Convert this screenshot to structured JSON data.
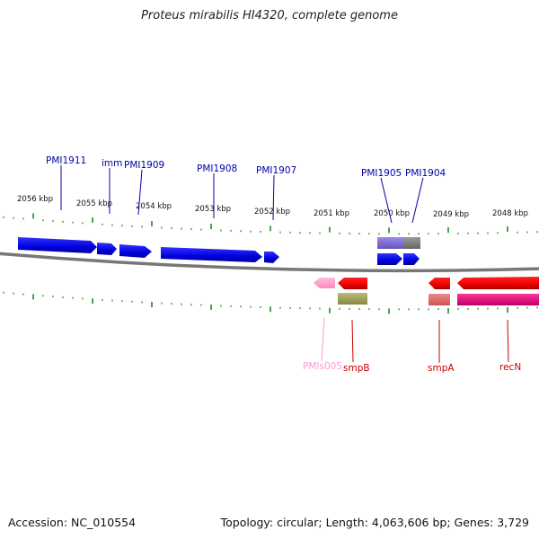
{
  "title": "Proteus mirabilis HI4320, complete genome",
  "footer": {
    "accession": "Accession: NC_010554",
    "topology": "Topology: circular; Length: 4,063,606 bp; Genes: 3,729"
  },
  "kbp_labels": [
    "2056 kbp",
    "2055 kbp",
    "2054 kbp",
    "2053 kbp",
    "2052 kbp",
    "2051 kbp",
    "2050 kbp",
    "2049 kbp",
    "2048 kbp"
  ],
  "genes": {
    "pmi1911": "PMI1911",
    "imm": "imm",
    "pmi1909": "PMI1909",
    "pmi1908": "PMI1908",
    "pmi1907": "PMI1907",
    "pmi1905": "PMI1905",
    "pmi1904": "PMI1904",
    "pmis005": "PMIs005",
    "smpb": "smpB",
    "smpa": "smpA",
    "recn": "recN"
  },
  "colors": {
    "forward": "#0000ee",
    "reverse": "#ee0000",
    "trna": "#ff99cc",
    "misc": "#999966",
    "purple": "#7766cc",
    "magenta": "#dd1177",
    "backbone": "#777777",
    "ticks": "#228822",
    "text": "#0000aa",
    "reverse_text": "#cc0000"
  }
}
